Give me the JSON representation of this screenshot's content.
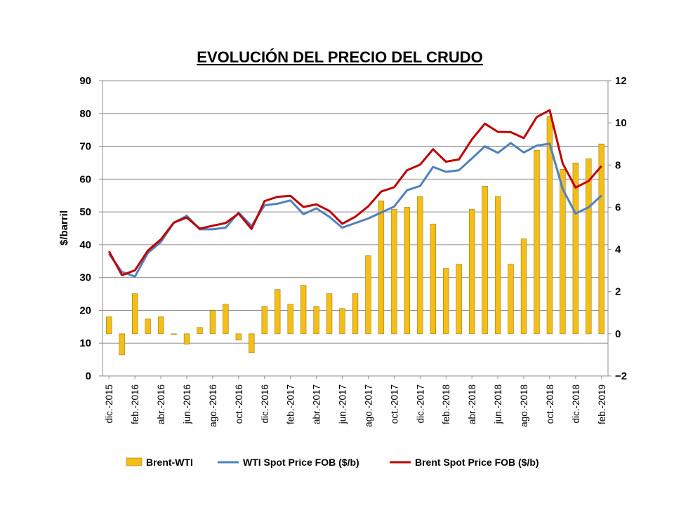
{
  "chart_data": {
    "type": "bar+line",
    "title": "EVOLUCIÓN DEL PRECIO DEL CRUDO",
    "ylabel_left": "$/barril",
    "ylim_left": [
      0,
      90
    ],
    "yticks_left": [
      "0",
      "10",
      "20",
      "30",
      "40",
      "50",
      "60",
      "70",
      "80",
      "90"
    ],
    "ylim_right": [
      -2,
      12
    ],
    "yticks_right": [
      "−2",
      "0",
      "2",
      "4",
      "6",
      "8",
      "10",
      "12"
    ],
    "grid": true,
    "legend_position": "bottom",
    "categories": [
      "dic.-2015",
      "ene.-2016",
      "feb.-2016",
      "mar.-2016",
      "abr.-2016",
      "may.-2016",
      "jun.-2016",
      "jul.-2016",
      "ago.-2016",
      "sep.-2016",
      "oct.-2016",
      "nov.-2016",
      "dic.-2016",
      "ene.-2017",
      "feb.-2017",
      "mar.-2017",
      "abr.-2017",
      "may.-2017",
      "jun.-2017",
      "jul.-2017",
      "ago.-2017",
      "sep.-2017",
      "oct.-2017",
      "nov.-2017",
      "dic.-2017",
      "ene.-2018",
      "feb.-2018",
      "mar.-2018",
      "abr.-2018",
      "may.-2018",
      "jun.-2018",
      "jul.-2018",
      "ago.-2018",
      "sep.-2018",
      "oct.-2018",
      "nov.-2018",
      "dic.-2018",
      "ene.-2019",
      "feb.-2019"
    ],
    "xtick_labels": [
      "dic.-2015",
      "feb.-2016",
      "abr.-2016",
      "jun.-2016",
      "ago.-2016",
      "oct.-2016",
      "dic.-2016",
      "feb.-2017",
      "abr.-2017",
      "jun.-2017",
      "ago.-2017",
      "oct.-2017",
      "dic.-2017",
      "feb.-2018",
      "abr.-2018",
      "jun.-2018",
      "ago.-2018",
      "oct.-2018",
      "dic.-2018",
      "feb.-2019"
    ],
    "series": [
      {
        "name": "Brent-WTI",
        "kind": "bar",
        "axis": "right",
        "color": "#F5BE17",
        "values": [
          0.8,
          -1.0,
          1.9,
          0.7,
          0.8,
          0.0,
          -0.5,
          0.3,
          1.1,
          1.4,
          -0.3,
          -0.9,
          1.3,
          2.1,
          1.4,
          2.3,
          1.3,
          1.9,
          1.2,
          1.9,
          3.7,
          6.3,
          5.9,
          6.0,
          6.5,
          5.2,
          3.1,
          3.3,
          5.9,
          7.0,
          6.5,
          3.3,
          4.5,
          8.7,
          10.3,
          7.8,
          8.1,
          8.3,
          9.0
        ]
      },
      {
        "name": "WTI Spot Price FOB ($/b)",
        "kind": "line",
        "axis": "left",
        "color": "#4F81BD",
        "values": [
          37.2,
          31.7,
          30.3,
          37.5,
          40.8,
          46.7,
          48.8,
          44.7,
          44.7,
          45.2,
          49.8,
          45.7,
          52.0,
          52.5,
          53.5,
          49.3,
          51.1,
          48.5,
          45.2,
          46.6,
          48.0,
          49.8,
          51.6,
          56.6,
          57.9,
          63.7,
          62.2,
          62.7,
          66.3,
          70.0,
          68.0,
          71.0,
          68.1,
          70.2,
          70.8,
          57.0,
          49.5,
          51.4,
          55.0
        ]
      },
      {
        "name": "Brent Spot Price FOB ($/b)",
        "kind": "line",
        "axis": "left",
        "color": "#C00000",
        "values": [
          38.0,
          30.7,
          32.2,
          38.2,
          41.6,
          46.7,
          48.3,
          44.9,
          45.8,
          46.6,
          49.5,
          44.8,
          53.3,
          54.6,
          54.9,
          51.5,
          52.3,
          50.3,
          46.4,
          48.5,
          51.7,
          56.2,
          57.5,
          62.7,
          64.4,
          69.1,
          65.3,
          66.0,
          72.1,
          76.9,
          74.4,
          74.3,
          72.5,
          78.9,
          81.0,
          64.8,
          57.4,
          59.4,
          64.0
        ]
      }
    ]
  }
}
